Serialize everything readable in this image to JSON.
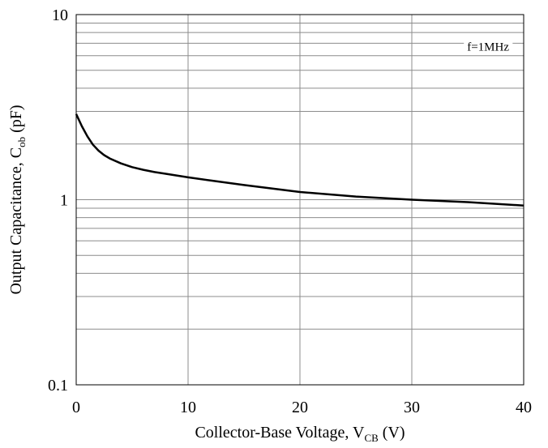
{
  "chart_data": {
    "type": "line",
    "xlabel": {
      "prefix": "Collector-Base Voltage, V",
      "sub": "CB",
      "suffix": " (V)"
    },
    "ylabel": {
      "prefix": "Output Capacitance, C",
      "sub": "ob",
      "suffix": " (pF)"
    },
    "xlim": [
      0,
      40
    ],
    "ylim": [
      0.1,
      10
    ],
    "yscale": "log",
    "grid": true,
    "x_ticks": [
      {
        "value": 0,
        "label": "0"
      },
      {
        "value": 10,
        "label": "10"
      },
      {
        "value": 20,
        "label": "20"
      },
      {
        "value": 30,
        "label": "30"
      },
      {
        "value": 40,
        "label": "40"
      }
    ],
    "y_ticks": [
      {
        "value": 0.1,
        "label": "0.1"
      },
      {
        "value": 1,
        "label": "1"
      },
      {
        "value": 10,
        "label": "10"
      }
    ],
    "annotation": "f=1MHz",
    "series": [
      {
        "color": "#000000",
        "x": [
          0,
          0.5,
          1,
          1.5,
          2,
          2.5,
          3,
          4,
          5,
          6,
          7,
          8,
          10,
          12,
          15,
          20,
          25,
          30,
          35,
          40
        ],
        "y": [
          2.9,
          2.5,
          2.2,
          1.98,
          1.84,
          1.74,
          1.67,
          1.57,
          1.5,
          1.45,
          1.41,
          1.38,
          1.32,
          1.27,
          1.2,
          1.1,
          1.04,
          1.0,
          0.97,
          0.93
        ]
      }
    ]
  }
}
